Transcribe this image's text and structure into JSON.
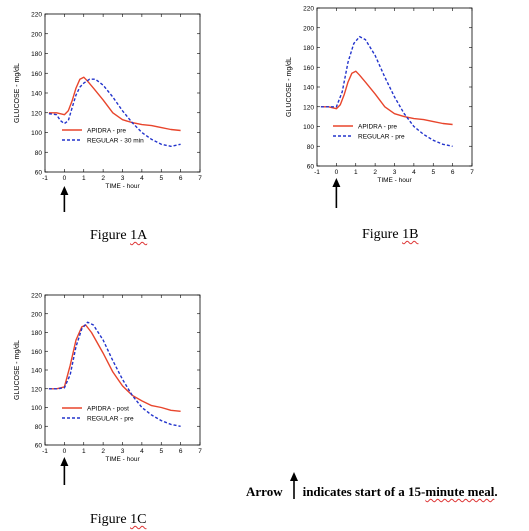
{
  "chart_data": [
    {
      "id": "A",
      "type": "line",
      "caption_prefix": "Figure ",
      "caption_suffix": "1A",
      "xlabel": "TIME - hour",
      "ylabel": "GLUCOSE - mg/dL",
      "xlim": [
        -1,
        7
      ],
      "ylim": [
        60,
        220
      ],
      "xticks": [
        -1,
        0,
        1,
        2,
        3,
        4,
        5,
        6,
        7
      ],
      "yticks": [
        60,
        80,
        100,
        120,
        140,
        160,
        180,
        200,
        220
      ],
      "legend_position": "bottom",
      "series": [
        {
          "name": "APIDRA - pre",
          "color": "#e8452c",
          "dash": "solid",
          "x": [
            -0.8,
            -0.4,
            0,
            0.2,
            0.4,
            0.6,
            0.8,
            1.0,
            1.2,
            1.5,
            2.0,
            2.5,
            3.0,
            3.5,
            4.0,
            4.5,
            5.0,
            5.5,
            6.0
          ],
          "y": [
            120,
            120,
            118,
            122,
            132,
            145,
            154,
            156,
            152,
            145,
            133,
            120,
            113,
            110,
            108,
            107,
            105,
            103,
            102
          ]
        },
        {
          "name": "REGULAR - 30 min",
          "color": "#2233cc",
          "dash": "dashed",
          "x": [
            -0.8,
            -0.4,
            -0.2,
            0,
            0.2,
            0.4,
            0.6,
            0.8,
            1.0,
            1.3,
            1.6,
            2.0,
            2.5,
            3.0,
            3.5,
            4.0,
            4.5,
            5.0,
            5.5,
            6.0
          ],
          "y": [
            119,
            118,
            112,
            109,
            112,
            125,
            138,
            146,
            150,
            154,
            154,
            148,
            136,
            122,
            110,
            100,
            93,
            88,
            86,
            88
          ]
        }
      ]
    },
    {
      "id": "B",
      "type": "line",
      "caption_prefix": "Figure ",
      "caption_suffix": "1B",
      "xlabel": "TIME - hour",
      "ylabel": "GLUCOSE - mg/dL",
      "xlim": [
        -1,
        7
      ],
      "ylim": [
        60,
        220
      ],
      "xticks": [
        -1,
        0,
        1,
        2,
        3,
        4,
        5,
        6,
        7
      ],
      "yticks": [
        60,
        80,
        100,
        120,
        140,
        160,
        180,
        200,
        220
      ],
      "legend_position": "bottom",
      "series": [
        {
          "name": "APIDRA - pre",
          "color": "#e8452c",
          "dash": "solid",
          "x": [
            -0.8,
            -0.4,
            0,
            0.2,
            0.4,
            0.6,
            0.8,
            1.0,
            1.2,
            1.5,
            2.0,
            2.5,
            3.0,
            3.5,
            4.0,
            4.5,
            5.0,
            5.5,
            6.0
          ],
          "y": [
            120,
            120,
            118,
            122,
            132,
            145,
            154,
            156,
            152,
            145,
            133,
            120,
            113,
            110,
            108,
            107,
            105,
            103,
            102
          ]
        },
        {
          "name": "REGULAR - pre",
          "color": "#2233cc",
          "dash": "dashed",
          "x": [
            -0.8,
            -0.4,
            0,
            0.3,
            0.6,
            0.9,
            1.2,
            1.5,
            2.0,
            2.5,
            3.0,
            3.5,
            4.0,
            4.5,
            5.0,
            5.5,
            6.0
          ],
          "y": [
            120,
            120,
            120,
            135,
            165,
            184,
            191,
            188,
            172,
            150,
            130,
            113,
            100,
            92,
            86,
            82,
            80
          ]
        }
      ]
    },
    {
      "id": "C",
      "type": "line",
      "caption_prefix": "Figure ",
      "caption_suffix": "1C",
      "xlabel": "TIME - hour",
      "ylabel": "GLUCOSE - mg/dL",
      "xlim": [
        -1,
        7
      ],
      "ylim": [
        60,
        220
      ],
      "xticks": [
        -1,
        0,
        1,
        2,
        3,
        4,
        5,
        6,
        7
      ],
      "yticks": [
        60,
        80,
        100,
        120,
        140,
        160,
        180,
        200,
        220
      ],
      "legend_position": "bottom",
      "series": [
        {
          "name": "APIDRA - post",
          "color": "#e8452c",
          "dash": "solid",
          "x": [
            -0.8,
            -0.4,
            0,
            0.3,
            0.6,
            0.9,
            1.1,
            1.4,
            2.0,
            2.5,
            3.0,
            3.5,
            4.0,
            4.5,
            5.0,
            5.5,
            6.0
          ],
          "y": [
            120,
            120,
            122,
            145,
            172,
            186,
            188,
            180,
            158,
            138,
            123,
            113,
            107,
            102,
            100,
            97,
            96
          ]
        },
        {
          "name": "REGULAR - pre",
          "color": "#2233cc",
          "dash": "dashed",
          "x": [
            -0.8,
            -0.4,
            0,
            0.3,
            0.6,
            0.9,
            1.2,
            1.5,
            2.0,
            2.5,
            3.0,
            3.5,
            4.0,
            4.5,
            5.0,
            5.5,
            6.0
          ],
          "y": [
            120,
            120,
            121,
            135,
            165,
            184,
            191,
            188,
            172,
            150,
            130,
            113,
            100,
            92,
            86,
            82,
            80
          ]
        }
      ]
    }
  ],
  "footnote": {
    "prefix": "Arrow",
    "middle": "indicates start of a 15-",
    "underlined": "minute meal",
    "suffix": "."
  }
}
